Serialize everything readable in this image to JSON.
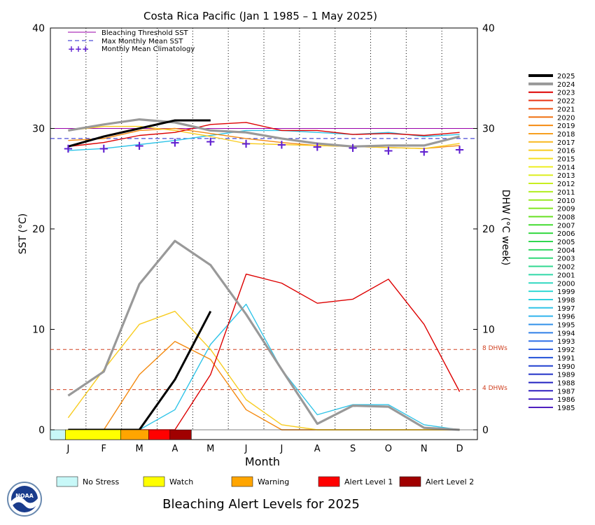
{
  "chart_data": {
    "type": "line",
    "title": "Costa Rica Pacific      (Jan 1 1985 – 1 May 2025)",
    "xlabel": "Month",
    "ylabel": "SST (°C)",
    "y2label": "DHW (°C week)",
    "ylim": [
      0,
      40
    ],
    "yticks": [
      0,
      10,
      20,
      30,
      40
    ],
    "months": [
      "J",
      "F",
      "M",
      "A",
      "M",
      "J",
      "J",
      "A",
      "S",
      "O",
      "N",
      "D"
    ],
    "reference_lines": [
      {
        "label": "Bleaching Threshold SST",
        "value": 30.0
      },
      {
        "label": "Max Monthly Mean SST",
        "value": 29.0
      },
      {
        "label": "8 DHWs",
        "value": 8
      },
      {
        "label": "4 DHWs",
        "value": 4
      }
    ],
    "legend": [
      "Bleaching Threshold SST",
      "Max Monthly Mean SST",
      "Monthly Mean Climatology"
    ],
    "climatology": [
      28.0,
      28.0,
      28.3,
      28.6,
      28.7,
      28.5,
      28.4,
      28.2,
      28.1,
      27.8,
      27.7,
      27.9
    ],
    "years": [
      "2025",
      "2024",
      "2023",
      "2022",
      "2021",
      "2020",
      "2019",
      "2018",
      "2017",
      "2016",
      "2015",
      "2014",
      "2013",
      "2012",
      "2011",
      "2010",
      "2009",
      "2008",
      "2007",
      "2006",
      "2005",
      "2004",
      "2003",
      "2002",
      "2001",
      "2000",
      "1999",
      "1998",
      "1997",
      "1996",
      "1995",
      "1994",
      "1993",
      "1992",
      "1991",
      "1990",
      "1989",
      "1988",
      "1987",
      "1986",
      "1985"
    ],
    "year_colors": [
      "#000000",
      "#999999",
      "#dd0000",
      "#e83010",
      "#ee5010",
      "#f07010",
      "#f48a10",
      "#f7a020",
      "#f8b820",
      "#f8cc20",
      "#f5e020",
      "#eeee20",
      "#dcee20",
      "#c8ee20",
      "#b0ee20",
      "#98ea20",
      "#80e820",
      "#66e020",
      "#44dc30",
      "#33d840",
      "#30d850",
      "#30d860",
      "#30d878",
      "#30d890",
      "#30d8a8",
      "#30d8c0",
      "#30d8d4",
      "#30d0e0",
      "#30c4e8",
      "#30b4ee",
      "#3090e8",
      "#3080e8",
      "#3070e8",
      "#3060e0",
      "#2050d8",
      "#2040d0",
      "#2030c8",
      "#2020c0",
      "#3020c0",
      "#4020c0",
      "#5020c0"
    ],
    "series": [
      {
        "name": "2025",
        "sst": [
          28.2,
          29.2,
          30.0,
          30.8,
          30.8
        ],
        "dhw": [
          0,
          0,
          0,
          5.0,
          11.8
        ]
      },
      {
        "name": "2024",
        "sst": [
          29.8,
          30.4,
          30.9,
          30.6,
          29.8,
          29.6,
          29.0,
          28.5,
          28.2,
          28.3,
          28.3,
          29.2
        ],
        "dhw": [
          3.4,
          5.8,
          14.5,
          18.8,
          16.4,
          11.5,
          6.0,
          0.6,
          2.4,
          2.3,
          0.2,
          0.0
        ]
      },
      {
        "name": "2023",
        "sst": [
          28.2,
          28.6,
          29.3,
          29.6,
          30.4,
          30.6,
          29.8,
          29.8,
          29.4,
          29.5,
          29.3,
          29.6
        ],
        "dhw": [
          0,
          0,
          0,
          0,
          5.5,
          15.5,
          14.6,
          12.6,
          13.0,
          15.0,
          10.5,
          3.8
        ]
      },
      {
        "name": "2016",
        "sst": [
          29.8,
          30.2,
          30.2,
          29.8,
          29.2,
          28.5,
          28.4,
          28.3,
          28.2,
          28.1,
          28.0,
          28.5
        ],
        "dhw": [
          1.2,
          6.0,
          10.5,
          11.8,
          8.0,
          3.0,
          0.5,
          0,
          0,
          0,
          0,
          0
        ]
      },
      {
        "name": "2019",
        "sst": [
          28.8,
          29.0,
          29.8,
          30.0,
          29.5,
          29.0,
          28.6,
          28.3,
          28.2,
          28.1,
          28.0,
          28.3
        ],
        "dhw": [
          0,
          0,
          5.5,
          8.8,
          7.0,
          2.0,
          0,
          0,
          0,
          0,
          0,
          0
        ]
      },
      {
        "name": "1997",
        "sst": [
          27.8,
          28.0,
          28.4,
          28.8,
          29.3,
          29.8,
          29.8,
          29.6,
          29.4,
          29.6,
          29.2,
          29.4
        ],
        "dhw": [
          0,
          0,
          0,
          2.0,
          8.5,
          12.5,
          6.0,
          1.5,
          2.5,
          2.5,
          0.5,
          0
        ]
      }
    ]
  },
  "right_axis": {
    "ticks": [
      "0",
      "10",
      "20",
      "30",
      "40"
    ],
    "dhw_8_label": "8 DHWs",
    "dhw_4_label": "4 DHWs"
  },
  "alert_bar": {
    "segments": [
      {
        "level": "No Stress",
        "color": "#c8f8f8"
      },
      {
        "level": "Watch",
        "color": "#ffff00"
      },
      {
        "level": "Warning",
        "color": "#ffa500"
      },
      {
        "level": "Alert Level 1",
        "color": "#ff0000"
      },
      {
        "level": "Alert Level 2",
        "color": "#a00000"
      }
    ]
  },
  "alert_legend": [
    {
      "label": "No Stress",
      "color": "#c8f8f8"
    },
    {
      "label": "Watch",
      "color": "#ffff00"
    },
    {
      "label": "Warning",
      "color": "#ffa500"
    },
    {
      "label": "Alert Level 1",
      "color": "#ff0000"
    },
    {
      "label": "Alert Level 2",
      "color": "#a00000"
    }
  ],
  "footer_title": "Bleaching Alert Levels for 2025",
  "logo_text": "NOAA"
}
